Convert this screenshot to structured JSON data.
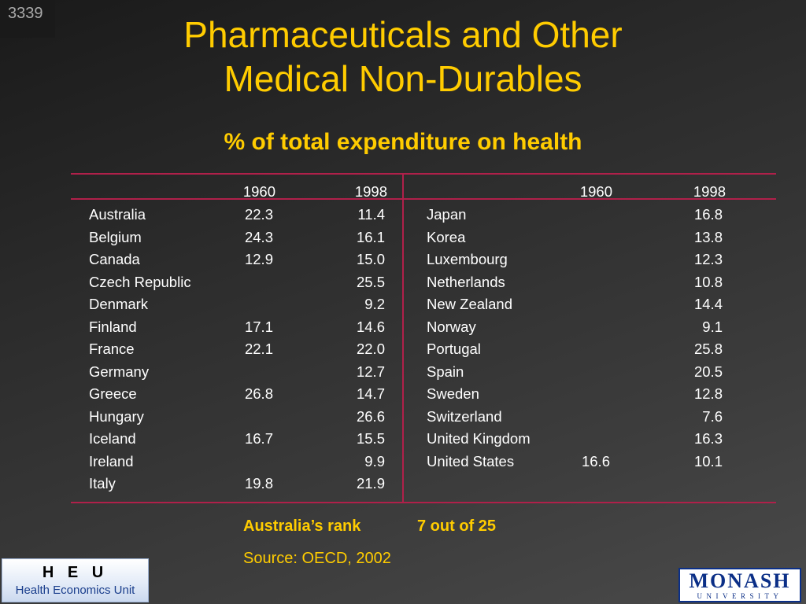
{
  "slide_number": "3339",
  "title": {
    "line1": "Pharmaceuticals and Other",
    "line2": "Medical Non-Durables"
  },
  "subtitle": "% of total expenditure on health",
  "table": {
    "year_headers": [
      "1960",
      "1998"
    ],
    "left": [
      {
        "country": "Australia",
        "y1960": "22.3",
        "y1998": "11.4"
      },
      {
        "country": "Belgium",
        "y1960": "24.3",
        "y1998": "16.1"
      },
      {
        "country": "Canada",
        "y1960": "12.9",
        "y1998": "15.0"
      },
      {
        "country": "Czech Republic",
        "y1960": "",
        "y1998": "25.5"
      },
      {
        "country": "Denmark",
        "y1960": "",
        "y1998": "9.2"
      },
      {
        "country": "Finland",
        "y1960": "17.1",
        "y1998": "14.6"
      },
      {
        "country": "France",
        "y1960": "22.1",
        "y1998": "22.0"
      },
      {
        "country": "Germany",
        "y1960": "",
        "y1998": "12.7"
      },
      {
        "country": "Greece",
        "y1960": "26.8",
        "y1998": "14.7"
      },
      {
        "country": "Hungary",
        "y1960": "",
        "y1998": "26.6"
      },
      {
        "country": "Iceland",
        "y1960": "16.7",
        "y1998": "15.5"
      },
      {
        "country": "Ireland",
        "y1960": "",
        "y1998": "9.9"
      },
      {
        "country": "Italy",
        "y1960": "19.8",
        "y1998": "21.9"
      }
    ],
    "right": [
      {
        "country": "Japan",
        "y1960": "",
        "y1998": "16.8"
      },
      {
        "country": "Korea",
        "y1960": "",
        "y1998": "13.8"
      },
      {
        "country": "Luxembourg",
        "y1960": "",
        "y1998": "12.3"
      },
      {
        "country": "Netherlands",
        "y1960": "",
        "y1998": "10.8"
      },
      {
        "country": "New Zealand",
        "y1960": "",
        "y1998": "14.4"
      },
      {
        "country": "Norway",
        "y1960": "",
        "y1998": "9.1"
      },
      {
        "country": "Portugal",
        "y1960": "",
        "y1998": "25.8"
      },
      {
        "country": "Spain",
        "y1960": "",
        "y1998": "20.5"
      },
      {
        "country": "Sweden",
        "y1960": "",
        "y1998": "12.8"
      },
      {
        "country": "Switzerland",
        "y1960": "",
        "y1998": "7.6"
      },
      {
        "country": "United Kingdom",
        "y1960": "",
        "y1998": "16.3"
      },
      {
        "country": "United States",
        "y1960": "16.6",
        "y1998": "10.1"
      }
    ]
  },
  "rank": {
    "label": "Australia’s rank",
    "value": "7 out of 25"
  },
  "source": "Source: OECD, 2002",
  "logos": {
    "heu_mark": "H E U",
    "heu_name": "Health Economics Unit",
    "monash_word": "MONASH",
    "monash_sub": "UNIVERSITY"
  },
  "colors": {
    "title": "#ffcc00",
    "rule": "#b0204a",
    "text": "#ffffff",
    "monash_blue": "#0b2f87"
  }
}
